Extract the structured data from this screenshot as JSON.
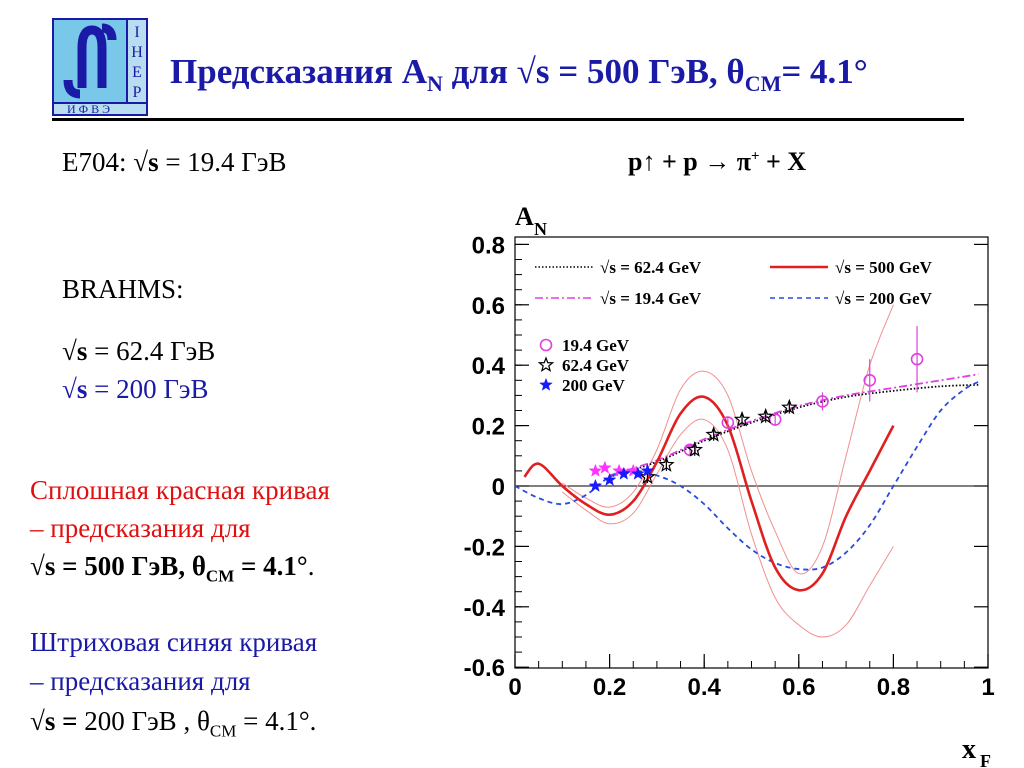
{
  "logo": {
    "side_letters": [
      "І",
      "Н",
      "Е",
      "Р"
    ],
    "bottom_text": "ИФВЭ",
    "colors": {
      "frame": "#1a1aa6",
      "fill": "#79c8ea",
      "band": "#b8ddf0"
    }
  },
  "header": {
    "title_pre": "Предсказания A",
    "title_sub": "N",
    "title_mid": " для √s = 500 ГэВ,  θ",
    "title_sub2": "CM",
    "title_post": "= 4.1°"
  },
  "left": {
    "e704_pre": "E704: √",
    "e704_s": "s",
    "e704_post": " = 19.4 ГэВ",
    "brahms": "BRAHMS:",
    "line1_pre": "√",
    "line1_s": "s",
    "line1_post": " = 62.4 ГэВ",
    "line2_pre": "√",
    "line2_s": "s",
    "line2_post": " = 200 ГэВ",
    "red_line1": "Сплошная красная кривая",
    "red_line2": "– предсказания для",
    "red_line3_pre": "√s = 500 ГэВ,  θ",
    "red_line3_sub": "CM",
    "red_line3_post": " =  4.1°",
    "red_line3_dot": ".",
    "blue_line1": "Штриховая синяя кривая",
    "blue_line2": "– предсказания для",
    "blue_line3_pre": "√",
    "blue_line3_s": "s =",
    "blue_line3_mid": " 200 ГэВ ,  θ",
    "blue_line3_sub": "CM",
    "blue_line3_post": " =  4.1°."
  },
  "reaction": {
    "pre": "p↑ + p → π",
    "sup": "+",
    "post": "  + X"
  },
  "chart_data": {
    "type": "line",
    "ylabel": "A",
    "ylabel_sub": "N",
    "xlabel": "x",
    "xlabel_sub": "F",
    "xlim": [
      0,
      1
    ],
    "ylim": [
      -0.6,
      0.85
    ],
    "x_ticks": [
      0,
      0.2,
      0.4,
      0.6,
      0.8,
      1
    ],
    "x_tick_labels": [
      "0",
      "0.2",
      "0.4",
      "0.6",
      "0.8",
      "1"
    ],
    "y_ticks": [
      0.8,
      0.6,
      0.4,
      0.2,
      0,
      -0.2,
      -0.4,
      -0.6
    ],
    "y_tick_labels": [
      "0.8",
      "0.6",
      "0.4",
      "0.2",
      "0",
      "-0.2",
      "-0.4",
      "-0.6"
    ],
    "zero_line": true,
    "legend": {
      "placement": "top",
      "entries": [
        {
          "label": "√s = 62.4 GeV",
          "series": "s624"
        },
        {
          "label": "√s = 500 GeV",
          "series": "s500"
        },
        {
          "label": "√s = 19.4 GeV",
          "series": "s194"
        },
        {
          "label": "√s = 200 GeV",
          "series": "s200"
        }
      ]
    },
    "data_legend": [
      {
        "label": "19.4 GeV",
        "marker": "circle",
        "color": "#e040e0"
      },
      {
        "label": "62.4 GeV",
        "marker": "star-open",
        "color": "#000000"
      },
      {
        "label": "200 GeV",
        "marker": "star-filled",
        "color": "#1a1aff"
      }
    ],
    "series": [
      {
        "id": "s624",
        "color": "#000000",
        "dash": "dotted",
        "x": [
          0.2,
          0.3,
          0.4,
          0.5,
          0.6,
          0.7,
          0.8,
          0.9,
          0.98
        ],
        "y": [
          0.03,
          0.08,
          0.15,
          0.21,
          0.26,
          0.295,
          0.315,
          0.33,
          0.335
        ]
      },
      {
        "id": "s194",
        "color": "#e040e0",
        "dash": "dashdot",
        "x": [
          0.2,
          0.3,
          0.4,
          0.5,
          0.6,
          0.7,
          0.8,
          0.9,
          0.98
        ],
        "y": [
          0.035,
          0.085,
          0.155,
          0.215,
          0.265,
          0.3,
          0.325,
          0.35,
          0.37
        ]
      },
      {
        "id": "s500",
        "color": "#e02020",
        "dash": "solid",
        "x": [
          0.02,
          0.04,
          0.06,
          0.1,
          0.15,
          0.2,
          0.25,
          0.3,
          0.35,
          0.4,
          0.45,
          0.5,
          0.55,
          0.6,
          0.65,
          0.7,
          0.75,
          0.8
        ],
        "y": [
          0.03,
          0.07,
          0.065,
          0.0,
          -0.06,
          -0.095,
          -0.05,
          0.08,
          0.24,
          0.295,
          0.2,
          -0.05,
          -0.27,
          -0.345,
          -0.29,
          -0.1,
          0.05,
          0.2
        ]
      },
      {
        "id": "s500_band_upper",
        "color": "#f09090",
        "dash": "thin",
        "x": [
          0.1,
          0.15,
          0.2,
          0.25,
          0.3,
          0.35,
          0.4,
          0.45,
          0.5,
          0.55,
          0.6,
          0.65,
          0.7,
          0.75,
          0.8
        ],
        "y": [
          0.01,
          -0.04,
          -0.07,
          -0.02,
          0.12,
          0.32,
          0.38,
          0.3,
          0.05,
          -0.15,
          -0.29,
          -0.2,
          0.1,
          0.4,
          0.6
        ]
      },
      {
        "id": "s500_band_lower",
        "color": "#f09090",
        "dash": "thin",
        "x": [
          0.1,
          0.15,
          0.2,
          0.25,
          0.3,
          0.35,
          0.4,
          0.45,
          0.5,
          0.55,
          0.6,
          0.65,
          0.7,
          0.75,
          0.8
        ],
        "y": [
          -0.02,
          -0.08,
          -0.125,
          -0.09,
          0.04,
          0.17,
          0.22,
          0.12,
          -0.16,
          -0.37,
          -0.46,
          -0.5,
          -0.46,
          -0.33,
          -0.2
        ]
      },
      {
        "id": "s200",
        "color": "#2a4ae0",
        "dash": "dashed",
        "x": [
          0.0,
          0.05,
          0.1,
          0.15,
          0.2,
          0.25,
          0.3,
          0.35,
          0.4,
          0.45,
          0.5,
          0.55,
          0.6,
          0.65,
          0.7,
          0.75,
          0.8,
          0.85,
          0.9,
          0.95,
          0.98
        ],
        "y": [
          0.0,
          -0.04,
          -0.06,
          -0.03,
          0.03,
          0.05,
          0.035,
          0.0,
          -0.06,
          -0.14,
          -0.21,
          -0.255,
          -0.275,
          -0.27,
          -0.22,
          -0.13,
          0.0,
          0.13,
          0.25,
          0.32,
          0.345
        ]
      }
    ],
    "points": [
      {
        "group": "19.4",
        "marker": "circle",
        "color": "#e040e0",
        "x": 0.37,
        "y": 0.12,
        "err": 0.02
      },
      {
        "group": "19.4",
        "marker": "circle",
        "color": "#e040e0",
        "x": 0.45,
        "y": 0.21,
        "err": 0.02
      },
      {
        "group": "19.4",
        "marker": "circle",
        "color": "#e040e0",
        "x": 0.55,
        "y": 0.22,
        "err": 0.02
      },
      {
        "group": "19.4",
        "marker": "circle",
        "color": "#e040e0",
        "x": 0.65,
        "y": 0.28,
        "err": 0.03
      },
      {
        "group": "19.4",
        "marker": "circle",
        "color": "#e040e0",
        "x": 0.75,
        "y": 0.35,
        "err": 0.07
      },
      {
        "group": "19.4",
        "marker": "circle",
        "color": "#e040e0",
        "x": 0.85,
        "y": 0.42,
        "err": 0.11
      },
      {
        "group": "19.4",
        "marker": "star-filled",
        "color": "#ff33ff",
        "x": 0.17,
        "y": 0.05,
        "err": 0
      },
      {
        "group": "19.4",
        "marker": "star-filled",
        "color": "#ff33ff",
        "x": 0.19,
        "y": 0.06,
        "err": 0
      },
      {
        "group": "19.4",
        "marker": "star-filled",
        "color": "#ff33ff",
        "x": 0.22,
        "y": 0.05,
        "err": 0
      },
      {
        "group": "19.4",
        "marker": "star-filled",
        "color": "#ff33ff",
        "x": 0.25,
        "y": 0.05,
        "err": 0
      },
      {
        "group": "62.4",
        "marker": "star-open",
        "color": "#000000",
        "x": 0.28,
        "y": 0.03,
        "err": 0.02
      },
      {
        "group": "62.4",
        "marker": "star-open",
        "color": "#000000",
        "x": 0.32,
        "y": 0.07,
        "err": 0.02
      },
      {
        "group": "62.4",
        "marker": "star-open",
        "color": "#000000",
        "x": 0.38,
        "y": 0.12,
        "err": 0.02
      },
      {
        "group": "62.4",
        "marker": "star-open",
        "color": "#000000",
        "x": 0.42,
        "y": 0.17,
        "err": 0.02
      },
      {
        "group": "62.4",
        "marker": "star-open",
        "color": "#000000",
        "x": 0.48,
        "y": 0.22,
        "err": 0.02
      },
      {
        "group": "62.4",
        "marker": "star-open",
        "color": "#000000",
        "x": 0.53,
        "y": 0.23,
        "err": 0.02
      },
      {
        "group": "62.4",
        "marker": "star-open",
        "color": "#000000",
        "x": 0.58,
        "y": 0.26,
        "err": 0.02
      },
      {
        "group": "200",
        "marker": "star-filled",
        "color": "#1a1aff",
        "x": 0.17,
        "y": 0.0,
        "err": 0
      },
      {
        "group": "200",
        "marker": "star-filled",
        "color": "#1a1aff",
        "x": 0.2,
        "y": 0.02,
        "err": 0
      },
      {
        "group": "200",
        "marker": "star-filled",
        "color": "#1a1aff",
        "x": 0.23,
        "y": 0.04,
        "err": 0
      },
      {
        "group": "200",
        "marker": "star-filled",
        "color": "#1a1aff",
        "x": 0.26,
        "y": 0.04,
        "err": 0
      },
      {
        "group": "200",
        "marker": "star-filled",
        "color": "#1a1aff",
        "x": 0.28,
        "y": 0.05,
        "err": 0
      }
    ]
  }
}
